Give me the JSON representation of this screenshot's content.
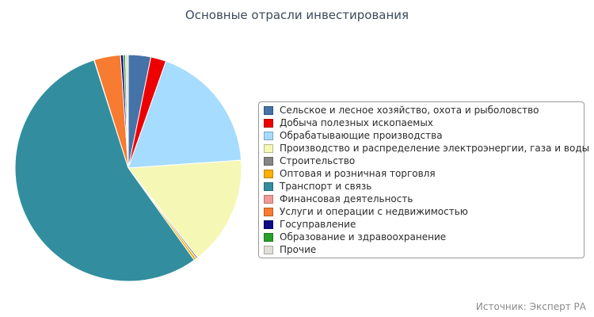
{
  "chart_data": {
    "type": "pie",
    "title": "Основные отрасли инвестирования",
    "source": "Источник: Эксперт РА",
    "legend_position": "right",
    "slices": [
      {
        "name": "Сельское и лесное хозяйство, охота и рыболовство",
        "value": 3.2,
        "color": "#4572a7"
      },
      {
        "name": "Добыча полезных ископаемых",
        "value": 2.2,
        "color": "#ee0000"
      },
      {
        "name": "Обрабатывающие производства",
        "value": 18.5,
        "color": "#a6dcff"
      },
      {
        "name": "Производство и распределение электроэнергии, газа и воды",
        "value": 15.6,
        "color": "#f5f7b5"
      },
      {
        "name": "Строительство",
        "value": 0.25,
        "color": "#858585"
      },
      {
        "name": "Оптовая и розничная торговля",
        "value": 0.35,
        "color": "#ffb000"
      },
      {
        "name": "Транспорт и связь",
        "value": 55.0,
        "color": "#328e9e"
      },
      {
        "name": "Финансовая деятельность",
        "value": 0.05,
        "color": "#f09a9a"
      },
      {
        "name": "Услуги и операции с недвижимостью",
        "value": 3.75,
        "color": "#f77b30"
      },
      {
        "name": "Госуправление",
        "value": 0.4,
        "color": "#0c0c85"
      },
      {
        "name": "Образование и здравоохранение",
        "value": 0.3,
        "color": "#28a028"
      },
      {
        "name": "Прочие",
        "value": 0.4,
        "color": "#e0e0d8"
      }
    ]
  }
}
